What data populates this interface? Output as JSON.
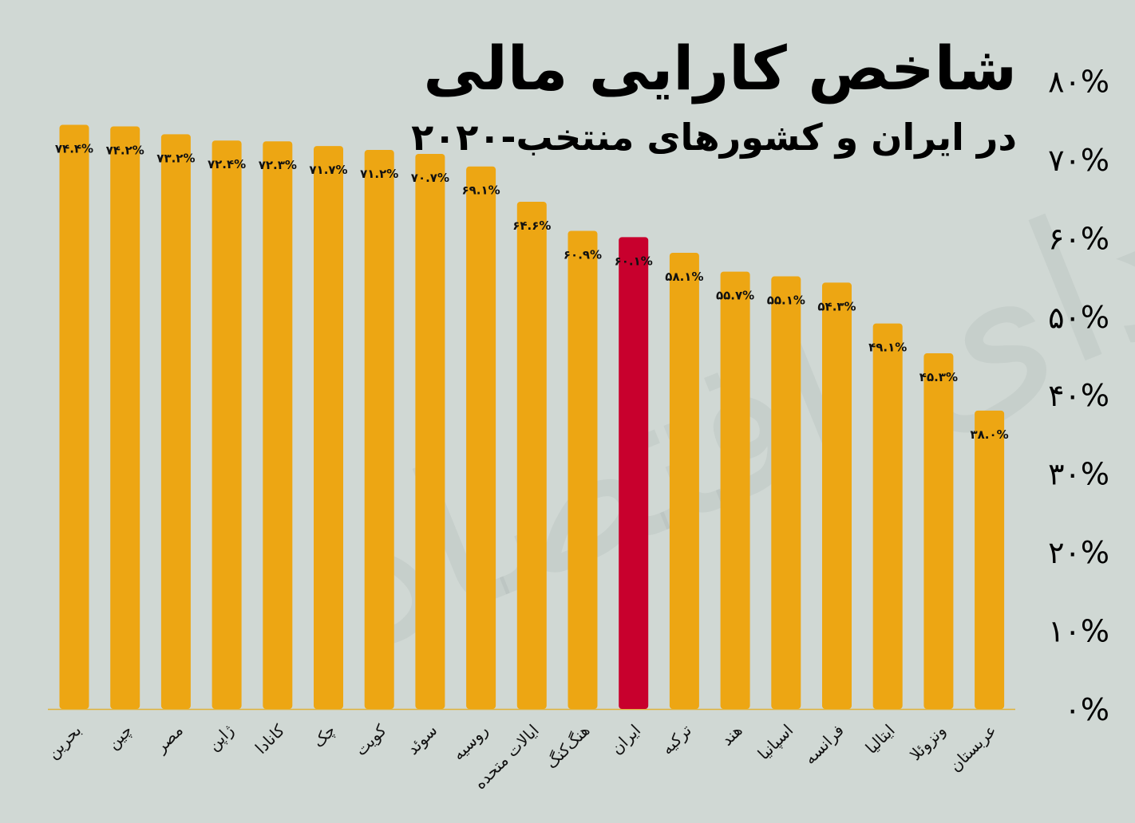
{
  "title": "شاخص کارایی مالی",
  "subtitle": "در ایران و کشورهای منتخب-۲۰۲۰",
  "colors": {
    "background": "#d0d8d4",
    "bar": "#eda613",
    "highlight": "#c8002d",
    "baseline": "#e0b23a"
  },
  "chart_data": {
    "type": "bar",
    "categories": [
      "بحرین",
      "چین",
      "مصر",
      "ژاپن",
      "کانادا",
      "چک",
      "کویت",
      "سوئد",
      "روسیه",
      "ایالات متحده",
      "هنگ‌کنگ",
      "ایران",
      "ترکیه",
      "هند",
      "اسپانیا",
      "فرانسه",
      "ایتالیا",
      "ونزوئلا",
      "عربستان"
    ],
    "values": [
      74.4,
      74.2,
      73.2,
      72.4,
      72.3,
      71.7,
      71.2,
      70.7,
      69.1,
      64.6,
      60.9,
      60.1,
      58.1,
      55.7,
      55.1,
      54.3,
      49.1,
      45.3,
      38.0
    ],
    "value_labels": [
      "۷۴.۴%",
      "۷۴.۲%",
      "۷۳.۲%",
      "۷۲.۴%",
      "۷۲.۳%",
      "۷۱.۷%",
      "۷۱.۲%",
      "۷۰.۷%",
      "۶۹.۱%",
      "۶۴.۶%",
      "۶۰.۹%",
      "۶۰.۱%",
      "۵۸.۱%",
      "۵۵.۷%",
      "۵۵.۱%",
      "۵۴.۳%",
      "۴۹.۱%",
      "۴۵.۳%",
      "۳۸.۰%"
    ],
    "highlight": "ایران",
    "ylim": [
      0,
      80
    ],
    "yticks": [
      0,
      10,
      20,
      30,
      40,
      50,
      60,
      70,
      80
    ],
    "ytick_labels": [
      "۰%",
      "۱۰%",
      "۲۰%",
      "۳۰%",
      "۴۰%",
      "۵۰%",
      "۶۰%",
      "۷۰%",
      "۸۰%"
    ],
    "y_axis_side": "right",
    "grid": false,
    "xlabel": "",
    "ylabel": ""
  }
}
